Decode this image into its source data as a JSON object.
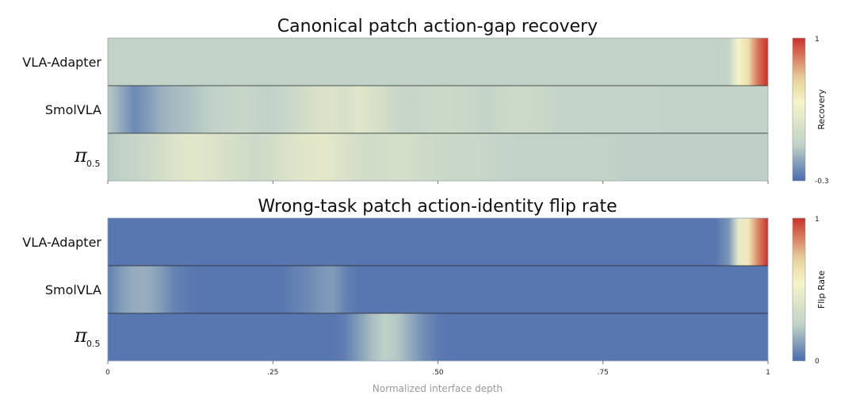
{
  "chart_data": [
    {
      "type": "heatmap",
      "title": "Canonical patch action-gap recovery",
      "rows": [
        {
          "label": "VLA-Adapter"
        },
        {
          "label": "SmolVLA"
        },
        {
          "label": "π",
          "subscript": "0.5"
        }
      ],
      "x": [
        0,
        0.02,
        0.04,
        0.06,
        0.08,
        0.1,
        0.12,
        0.14,
        0.16,
        0.18,
        0.2,
        0.22,
        0.24,
        0.26,
        0.28,
        0.3,
        0.32,
        0.34,
        0.36,
        0.38,
        0.4,
        0.42,
        0.44,
        0.46,
        0.48,
        0.5,
        0.52,
        0.54,
        0.56,
        0.58,
        0.6,
        0.62,
        0.64,
        0.66,
        0.68,
        0.7,
        0.72,
        0.74,
        0.76,
        0.78,
        0.8,
        0.82,
        0.84,
        0.86,
        0.88,
        0.9,
        0.92,
        0.94,
        0.955,
        0.97,
        0.985,
        1.0
      ],
      "values": [
        [
          0.03,
          0.03,
          0.03,
          0.03,
          0.03,
          0.03,
          0.03,
          0.03,
          0.03,
          0.03,
          0.03,
          0.03,
          0.03,
          0.03,
          0.03,
          0.03,
          0.03,
          0.03,
          0.03,
          0.03,
          0.03,
          0.03,
          0.03,
          0.03,
          0.03,
          0.03,
          0.03,
          0.03,
          0.03,
          0.03,
          0.03,
          0.03,
          0.03,
          0.03,
          0.03,
          0.03,
          0.03,
          0.03,
          0.03,
          0.03,
          0.03,
          0.03,
          0.03,
          0.03,
          0.03,
          0.03,
          0.03,
          0.05,
          0.4,
          0.55,
          0.85,
          1.0
        ],
        [
          0.0,
          -0.1,
          -0.2,
          -0.15,
          -0.08,
          -0.05,
          -0.03,
          0.0,
          0.03,
          0.05,
          0.08,
          0.05,
          0.03,
          0.05,
          0.1,
          0.15,
          0.2,
          0.22,
          0.18,
          0.25,
          0.2,
          0.15,
          0.08,
          0.06,
          0.08,
          0.1,
          0.1,
          0.08,
          0.06,
          0.05,
          0.1,
          0.12,
          0.1,
          0.08,
          0.05,
          0.05,
          0.05,
          0.05,
          0.05,
          0.05,
          0.05,
          0.05,
          0.04,
          0.04,
          0.04,
          0.04,
          0.04,
          0.04,
          0.04,
          0.04,
          0.04,
          0.04
        ],
        [
          0.0,
          0.03,
          0.05,
          0.1,
          0.15,
          0.22,
          0.26,
          0.25,
          0.22,
          0.18,
          0.15,
          0.12,
          0.14,
          0.18,
          0.22,
          0.26,
          0.28,
          0.25,
          0.2,
          0.16,
          0.14,
          0.15,
          0.17,
          0.16,
          0.12,
          0.1,
          0.08,
          0.08,
          0.08,
          0.06,
          0.05,
          0.04,
          0.04,
          0.04,
          0.04,
          0.04,
          0.04,
          0.03,
          0.03,
          0.02,
          0.02,
          0.02,
          0.02,
          0.02,
          0.02,
          0.02,
          0.02,
          0.02,
          0.02,
          0.02,
          0.02,
          0.02
        ]
      ],
      "colorbar": {
        "label": "Recovery",
        "min": -0.3,
        "max": 1,
        "min_label": "-0.3",
        "max_label": "1"
      },
      "xlim": [
        0,
        1
      ]
    },
    {
      "type": "heatmap",
      "title": "Wrong-task patch action-identity flip rate",
      "rows": [
        {
          "label": "VLA-Adapter"
        },
        {
          "label": "SmolVLA"
        },
        {
          "label": "π",
          "subscript": "0.5"
        }
      ],
      "x": [
        0,
        0.02,
        0.04,
        0.06,
        0.08,
        0.1,
        0.12,
        0.14,
        0.16,
        0.18,
        0.2,
        0.22,
        0.24,
        0.26,
        0.28,
        0.3,
        0.32,
        0.34,
        0.36,
        0.38,
        0.4,
        0.42,
        0.44,
        0.46,
        0.48,
        0.5,
        0.52,
        0.54,
        0.56,
        0.58,
        0.6,
        0.62,
        0.64,
        0.66,
        0.68,
        0.7,
        0.72,
        0.74,
        0.76,
        0.78,
        0.8,
        0.82,
        0.84,
        0.86,
        0.88,
        0.9,
        0.92,
        0.94,
        0.955,
        0.97,
        0.985,
        1.0
      ],
      "values": [
        [
          0.03,
          0.03,
          0.03,
          0.03,
          0.03,
          0.03,
          0.03,
          0.03,
          0.03,
          0.03,
          0.03,
          0.03,
          0.03,
          0.03,
          0.03,
          0.03,
          0.03,
          0.03,
          0.03,
          0.03,
          0.03,
          0.03,
          0.03,
          0.03,
          0.03,
          0.03,
          0.03,
          0.03,
          0.03,
          0.03,
          0.03,
          0.03,
          0.03,
          0.03,
          0.03,
          0.03,
          0.03,
          0.03,
          0.03,
          0.03,
          0.03,
          0.03,
          0.03,
          0.03,
          0.03,
          0.03,
          0.03,
          0.1,
          0.45,
          0.6,
          0.85,
          1.0
        ],
        [
          0.05,
          0.12,
          0.16,
          0.16,
          0.12,
          0.06,
          0.04,
          0.03,
          0.03,
          0.03,
          0.03,
          0.03,
          0.03,
          0.03,
          0.05,
          0.07,
          0.1,
          0.12,
          0.06,
          0.03,
          0.03,
          0.03,
          0.03,
          0.03,
          0.03,
          0.03,
          0.03,
          0.03,
          0.03,
          0.03,
          0.03,
          0.03,
          0.03,
          0.03,
          0.03,
          0.03,
          0.03,
          0.03,
          0.03,
          0.03,
          0.03,
          0.03,
          0.03,
          0.03,
          0.03,
          0.03,
          0.03,
          0.03,
          0.03,
          0.03,
          0.03,
          0.03
        ],
        [
          0.03,
          0.03,
          0.03,
          0.03,
          0.03,
          0.03,
          0.03,
          0.03,
          0.03,
          0.03,
          0.03,
          0.03,
          0.03,
          0.03,
          0.03,
          0.03,
          0.03,
          0.03,
          0.05,
          0.12,
          0.2,
          0.25,
          0.22,
          0.15,
          0.08,
          0.04,
          0.03,
          0.03,
          0.03,
          0.03,
          0.03,
          0.03,
          0.03,
          0.03,
          0.03,
          0.03,
          0.03,
          0.03,
          0.03,
          0.03,
          0.03,
          0.03,
          0.03,
          0.03,
          0.03,
          0.03,
          0.03,
          0.03,
          0.03,
          0.03,
          0.03,
          0.03
        ]
      ],
      "colorbar": {
        "label": "Flip Rate",
        "min": 0,
        "max": 1,
        "min_label": "0",
        "max_label": "1"
      },
      "xlim": [
        0,
        1
      ]
    }
  ],
  "x_axis": {
    "label": "Normalized interface depth",
    "ticks": [
      0,
      0.25,
      0.5,
      0.75,
      1
    ],
    "tick_labels": [
      "0",
      ".25",
      ".50",
      ".75",
      "1"
    ]
  },
  "colormap": [
    "#4a6aac",
    "#c0d2c8",
    "#f7f4c9",
    "#e6d09a",
    "#c9302b"
  ]
}
